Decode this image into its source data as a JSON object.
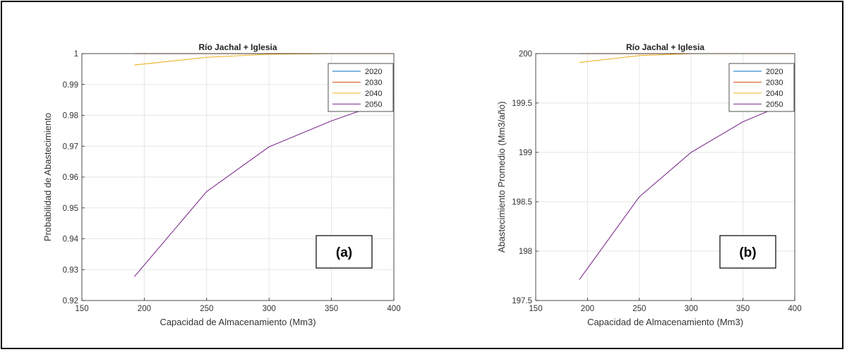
{
  "chart_data": [
    {
      "type": "line",
      "title": "Río Jachal + Iglesia",
      "xlabel": "Capacidad de Almacenamiento (Mm3)",
      "ylabel": "Probabilidad de Abastecimiento",
      "panel_label": "(a)",
      "xlim": [
        150,
        400
      ],
      "ylim": [
        0.92,
        1.0
      ],
      "xticks": [
        "150",
        "200",
        "250",
        "300",
        "350",
        "400"
      ],
      "yticks": [
        "0.92",
        "0.93",
        "0.94",
        "0.95",
        "0.96",
        "0.97",
        "0.98",
        "0.99",
        "1"
      ],
      "xtick_values": [
        150,
        200,
        250,
        300,
        350,
        400
      ],
      "ytick_values": [
        0.92,
        0.93,
        0.94,
        0.95,
        0.96,
        0.97,
        0.98,
        0.99,
        1.0
      ],
      "grid": true,
      "legend_position": "top-right",
      "series": [
        {
          "name": "2020",
          "color": "#0072bd",
          "x": [
            192,
            250,
            300,
            350,
            400
          ],
          "y": [
            1.0,
            1.0,
            1.0,
            1.0,
            1.0
          ]
        },
        {
          "name": "2030",
          "color": "#d95319",
          "x": [
            192,
            250,
            300,
            350,
            400
          ],
          "y": [
            1.0,
            1.0,
            1.0,
            1.0,
            1.0
          ]
        },
        {
          "name": "2040",
          "color": "#edb120",
          "x": [
            192,
            250,
            300,
            350,
            400
          ],
          "y": [
            0.9963,
            0.9988,
            0.9998,
            1.0,
            1.0
          ]
        },
        {
          "name": "2050",
          "color": "#7e2f8e",
          "x": [
            192,
            250,
            300,
            350,
            400
          ],
          "y": [
            0.9277,
            0.9553,
            0.9698,
            0.9782,
            0.9853
          ]
        }
      ]
    },
    {
      "type": "line",
      "title": "Río Jachal + Iglesia",
      "xlabel": "Capacidad de Almacenamiento (Mm3)",
      "ylabel": "Abastecimiento Promedio (Mm3/año)",
      "panel_label": "(b)",
      "xlim": [
        150,
        400
      ],
      "ylim": [
        197.5,
        200
      ],
      "xticks": [
        "150",
        "200",
        "250",
        "300",
        "350",
        "400"
      ],
      "yticks": [
        "197.5",
        "198",
        "198.5",
        "199",
        "199.5",
        "200"
      ],
      "xtick_values": [
        150,
        200,
        250,
        300,
        350,
        400
      ],
      "ytick_values": [
        197.5,
        198,
        198.5,
        199,
        199.5,
        200
      ],
      "grid": true,
      "legend_position": "top-right",
      "series": [
        {
          "name": "2020",
          "color": "#0072bd",
          "x": [
            192,
            250,
            300,
            350,
            400
          ],
          "y": [
            200,
            200,
            200,
            200,
            200
          ]
        },
        {
          "name": "2030",
          "color": "#d95319",
          "x": [
            192,
            250,
            300,
            350,
            400
          ],
          "y": [
            200,
            200,
            200,
            200,
            200
          ]
        },
        {
          "name": "2040",
          "color": "#edb120",
          "x": [
            192,
            250,
            300,
            350,
            400
          ],
          "y": [
            199.91,
            199.98,
            200,
            200,
            200
          ]
        },
        {
          "name": "2050",
          "color": "#7e2f8e",
          "x": [
            192,
            250,
            300,
            350,
            400
          ],
          "y": [
            197.71,
            198.55,
            199.0,
            199.31,
            199.53
          ]
        }
      ]
    }
  ]
}
